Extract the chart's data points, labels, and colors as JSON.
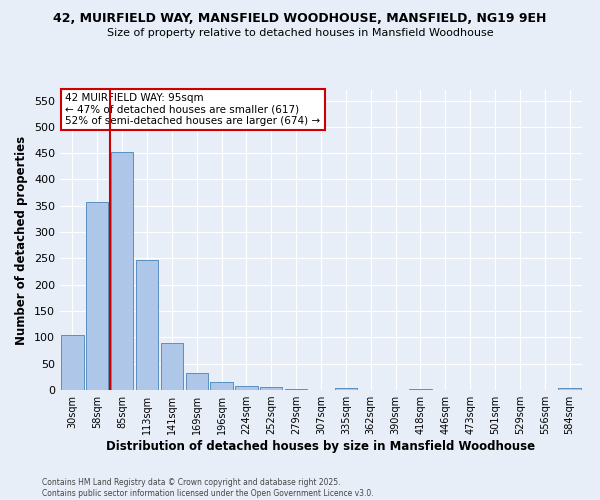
{
  "title_line1": "42, MUIRFIELD WAY, MANSFIELD WOODHOUSE, MANSFIELD, NG19 9EH",
  "title_line2": "Size of property relative to detached houses in Mansfield Woodhouse",
  "xlabel": "Distribution of detached houses by size in Mansfield Woodhouse",
  "ylabel": "Number of detached properties",
  "bar_labels": [
    "30sqm",
    "58sqm",
    "85sqm",
    "113sqm",
    "141sqm",
    "169sqm",
    "196sqm",
    "224sqm",
    "252sqm",
    "279sqm",
    "307sqm",
    "335sqm",
    "362sqm",
    "390sqm",
    "418sqm",
    "446sqm",
    "473sqm",
    "501sqm",
    "529sqm",
    "556sqm",
    "584sqm"
  ],
  "bar_values": [
    105,
    357,
    453,
    247,
    90,
    32,
    15,
    8,
    5,
    2,
    0,
    3,
    0,
    0,
    2,
    0,
    0,
    0,
    0,
    0,
    3
  ],
  "bar_color": "#aec6e8",
  "bar_edge_color": "#5a8fc0",
  "vline_x": 1.5,
  "vline_color": "#cc0000",
  "annotation_text": "42 MUIRFIELD WAY: 95sqm\n← 47% of detached houses are smaller (617)\n52% of semi-detached houses are larger (674) →",
  "annotation_box_color": "#ffffff",
  "annotation_box_edge": "#cc0000",
  "ylim": [
    0,
    570
  ],
  "yticks": [
    0,
    50,
    100,
    150,
    200,
    250,
    300,
    350,
    400,
    450,
    500,
    550
  ],
  "background_color": "#e8eef8",
  "grid_color": "#ffffff",
  "footer_text": "Contains HM Land Registry data © Crown copyright and database right 2025.\nContains public sector information licensed under the Open Government Licence v3.0."
}
